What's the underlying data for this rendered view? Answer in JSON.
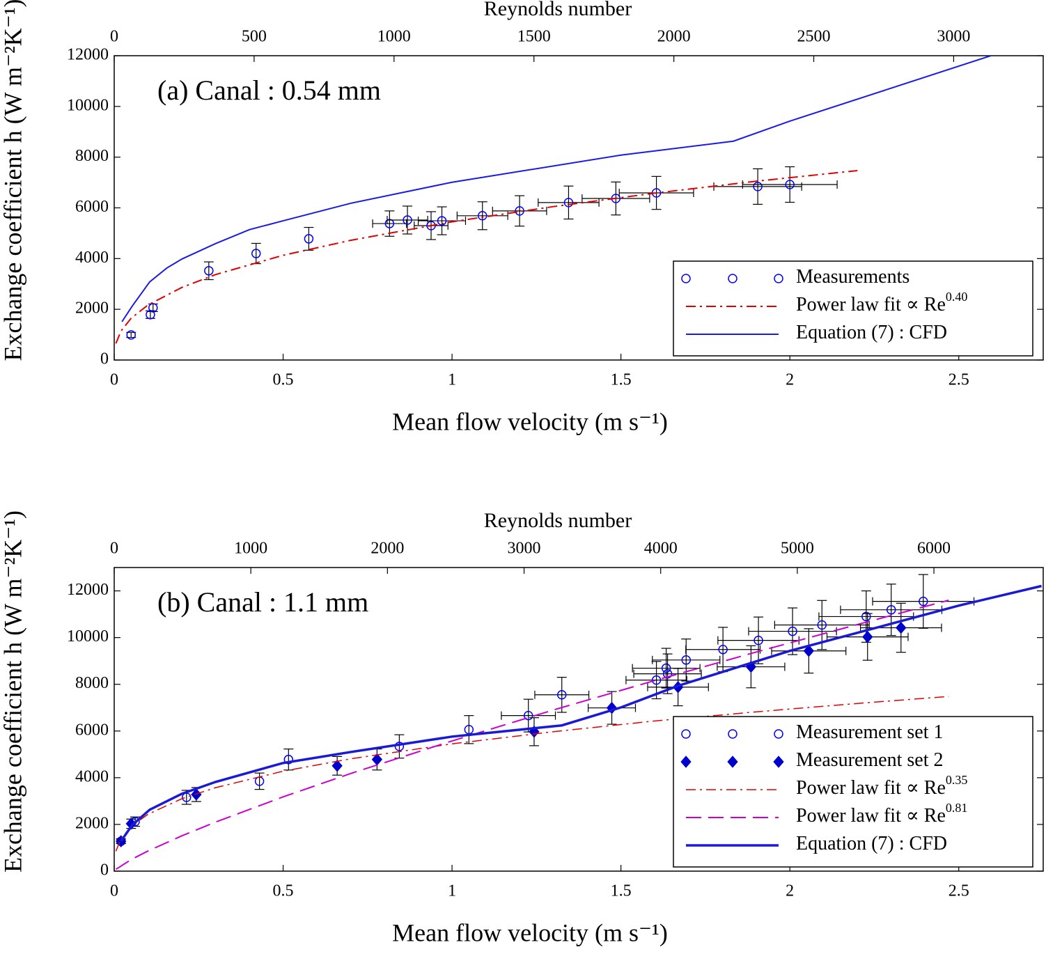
{
  "chart_data": [
    {
      "type": "scatter",
      "annotation": "(a)  Canal  :  0.54 mm",
      "xlabel": "Mean flow velocity (m s⁻¹)",
      "ylabel": "Exchange coefficient h (W m⁻²K⁻¹)",
      "x2label": "Reynolds number",
      "xlim": [
        0,
        2.75
      ],
      "xticks": [
        0,
        0.5,
        1,
        1.5,
        2,
        2.5
      ],
      "ylim": [
        0,
        12000
      ],
      "yticks": [
        0,
        2000,
        4000,
        6000,
        8000,
        10000,
        12000
      ],
      "x2lim": [
        0,
        3320
      ],
      "x2ticks": [
        0,
        500,
        1000,
        1500,
        2000,
        2500,
        3000
      ],
      "legend": "lower right",
      "series": [
        {
          "name": "Measurements",
          "kind": "points",
          "marker": "circle",
          "color": "#0000ff",
          "x": [
            0.05,
            0.107,
            0.115,
            0.28,
            0.42,
            0.576,
            0.815,
            0.868,
            0.938,
            0.97,
            1.09,
            1.2,
            1.345,
            1.485,
            1.605,
            1.905,
            2.0
          ],
          "values": [
            990,
            1790,
            2060,
            3520,
            4200,
            4780,
            5380,
            5520,
            5300,
            5490,
            5690,
            5880,
            6210,
            6370,
            6590,
            6840,
            6920
          ],
          "xerr": [
            null,
            null,
            null,
            null,
            null,
            null,
            0.05,
            0.06,
            0.05,
            0.07,
            0.075,
            0.08,
            0.09,
            0.1,
            0.11,
            0.13,
            0.14
          ],
          "yerr": [
            100,
            150,
            150,
            350,
            400,
            450,
            500,
            550,
            550,
            550,
            550,
            600,
            650,
            650,
            650,
            700,
            700
          ]
        },
        {
          "name": "Power law fit ∝ Re",
          "name_superscript": "0.40",
          "kind": "line",
          "dash": "dashdot",
          "linewidth": 2,
          "color": "#e00000",
          "x": [
            0.005,
            0.02,
            0.05,
            0.1,
            0.2,
            0.3,
            0.5,
            0.7,
            1,
            1.3,
            1.6,
            1.9,
            2.2
          ],
          "values": [
            654,
            1140,
            1646,
            2170,
            2860,
            3370,
            4130,
            4720,
            5450,
            6050,
            6580,
            7050,
            7470
          ]
        },
        {
          "name": "Equation (7)  :  CFD",
          "kind": "line",
          "dash": "solid",
          "linewidth": 2,
          "color": "#1a1ae6",
          "x": [
            0.023,
            0.053,
            0.105,
            0.156,
            0.2,
            0.3,
            0.4,
            0.5,
            0.7,
            1.0,
            1.5,
            1.833,
            2.0,
            2.595
          ],
          "values": [
            1510,
            2120,
            3080,
            3630,
            3980,
            4590,
            5140,
            5490,
            6180,
            7010,
            8080,
            8630,
            9420,
            12000
          ]
        }
      ]
    },
    {
      "type": "scatter",
      "annotation": "(b)  Canal  :  1.1 mm",
      "xlabel": "Mean flow velocity (m s⁻¹)",
      "ylabel": "Exchange coefficient h (W m⁻²K⁻¹)",
      "x2label": "Reynolds number",
      "xlim": [
        0,
        2.75
      ],
      "xticks": [
        0,
        0.5,
        1,
        1.5,
        2,
        2.5
      ],
      "ylim": [
        0,
        13000
      ],
      "yticks": [
        0,
        2000,
        4000,
        6000,
        8000,
        10000,
        12000
      ],
      "x2lim": [
        0,
        6800
      ],
      "x2ticks": [
        0,
        1000,
        2000,
        3000,
        4000,
        5000,
        6000
      ],
      "legend": "lower right",
      "series": [
        {
          "name": "Measurement set 1",
          "kind": "points",
          "marker": "circle",
          "color": "#0000ff",
          "x": [
            0.02,
            0.062,
            0.214,
            0.43,
            0.516,
            0.844,
            1.05,
            1.226,
            1.325,
            1.605,
            1.634,
            1.638,
            1.693,
            1.802,
            1.907,
            2.008,
            2.095,
            2.226,
            2.3,
            2.395
          ],
          "values": [
            1280,
            2120,
            3160,
            3850,
            4780,
            5340,
            6060,
            6660,
            7550,
            8180,
            8690,
            8450,
            9040,
            9490,
            9880,
            10270,
            10540,
            10900,
            11190,
            11550
          ],
          "xerr": [
            null,
            null,
            null,
            null,
            null,
            null,
            null,
            0.08,
            0.08,
            0.09,
            0.1,
            0.1,
            0.1,
            0.11,
            0.12,
            0.13,
            0.14,
            0.14,
            0.15,
            0.15
          ],
          "yerr": [
            100,
            200,
            300,
            350,
            450,
            500,
            600,
            700,
            750,
            800,
            850,
            850,
            900,
            950,
            1000,
            1000,
            1050,
            1100,
            1100,
            1150
          ]
        },
        {
          "name": "Measurement set 2",
          "kind": "points",
          "marker": "diamond",
          "color": "#0000cc",
          "x": [
            0.02,
            0.05,
            0.243,
            0.66,
            0.778,
            1.243,
            1.473,
            1.669,
            1.885,
            2.056,
            2.23,
            2.329
          ],
          "values": [
            1280,
            2030,
            3280,
            4510,
            4780,
            5970,
            6990,
            7880,
            8750,
            9430,
            10030,
            10420
          ],
          "xerr": [
            null,
            null,
            null,
            null,
            null,
            null,
            0.07,
            0.09,
            0.1,
            0.11,
            0.12,
            0.12
          ],
          "yerr": [
            100,
            200,
            300,
            400,
            450,
            600,
            700,
            800,
            900,
            950,
            1000,
            1050
          ]
        },
        {
          "name": "Power law fit ∝ Re",
          "name_superscript": "0.35",
          "kind": "line",
          "dash": "dashdot",
          "linewidth": 1.5,
          "color": "#e00000",
          "x": [
            0.005,
            0.02,
            0.05,
            0.1,
            0.2,
            0.3,
            0.5,
            0.7,
            1,
            1.3,
            1.6,
            1.9,
            2.2,
            2.47
          ],
          "values": [
            856,
            1385,
            1910,
            2435,
            3100,
            3575,
            4280,
            4810,
            5450,
            5970,
            6430,
            6820,
            7180,
            7480
          ]
        },
        {
          "name": "Power law fit ∝ Re",
          "name_superscript": "0.81",
          "kind": "line",
          "dash": "dashed",
          "linewidth": 2,
          "color": "#cc00cc",
          "x": [
            0.005,
            0.05,
            0.1,
            0.2,
            0.3,
            0.5,
            0.7,
            1,
            1.3,
            1.6,
            1.9,
            2.2,
            2.47
          ],
          "values": [
            76,
            494,
            863,
            1510,
            2100,
            3180,
            4180,
            5575,
            6900,
            8160,
            9380,
            10560,
            11600
          ]
        },
        {
          "name": "Equation (7)  :  CFD",
          "kind": "line",
          "dash": "solid",
          "linewidth": 3.5,
          "color": "#1a1ad6",
          "x": [
            0.02,
            0.053,
            0.105,
            0.2,
            0.3,
            0.5,
            0.7,
            1.0,
            1.325,
            1.5,
            1.67,
            2.0,
            2.5,
            2.745
          ],
          "values": [
            1280,
            1970,
            2630,
            3310,
            3820,
            4630,
            5100,
            5760,
            6240,
            7010,
            7940,
            9430,
            11370,
            12210
          ]
        }
      ]
    }
  ]
}
